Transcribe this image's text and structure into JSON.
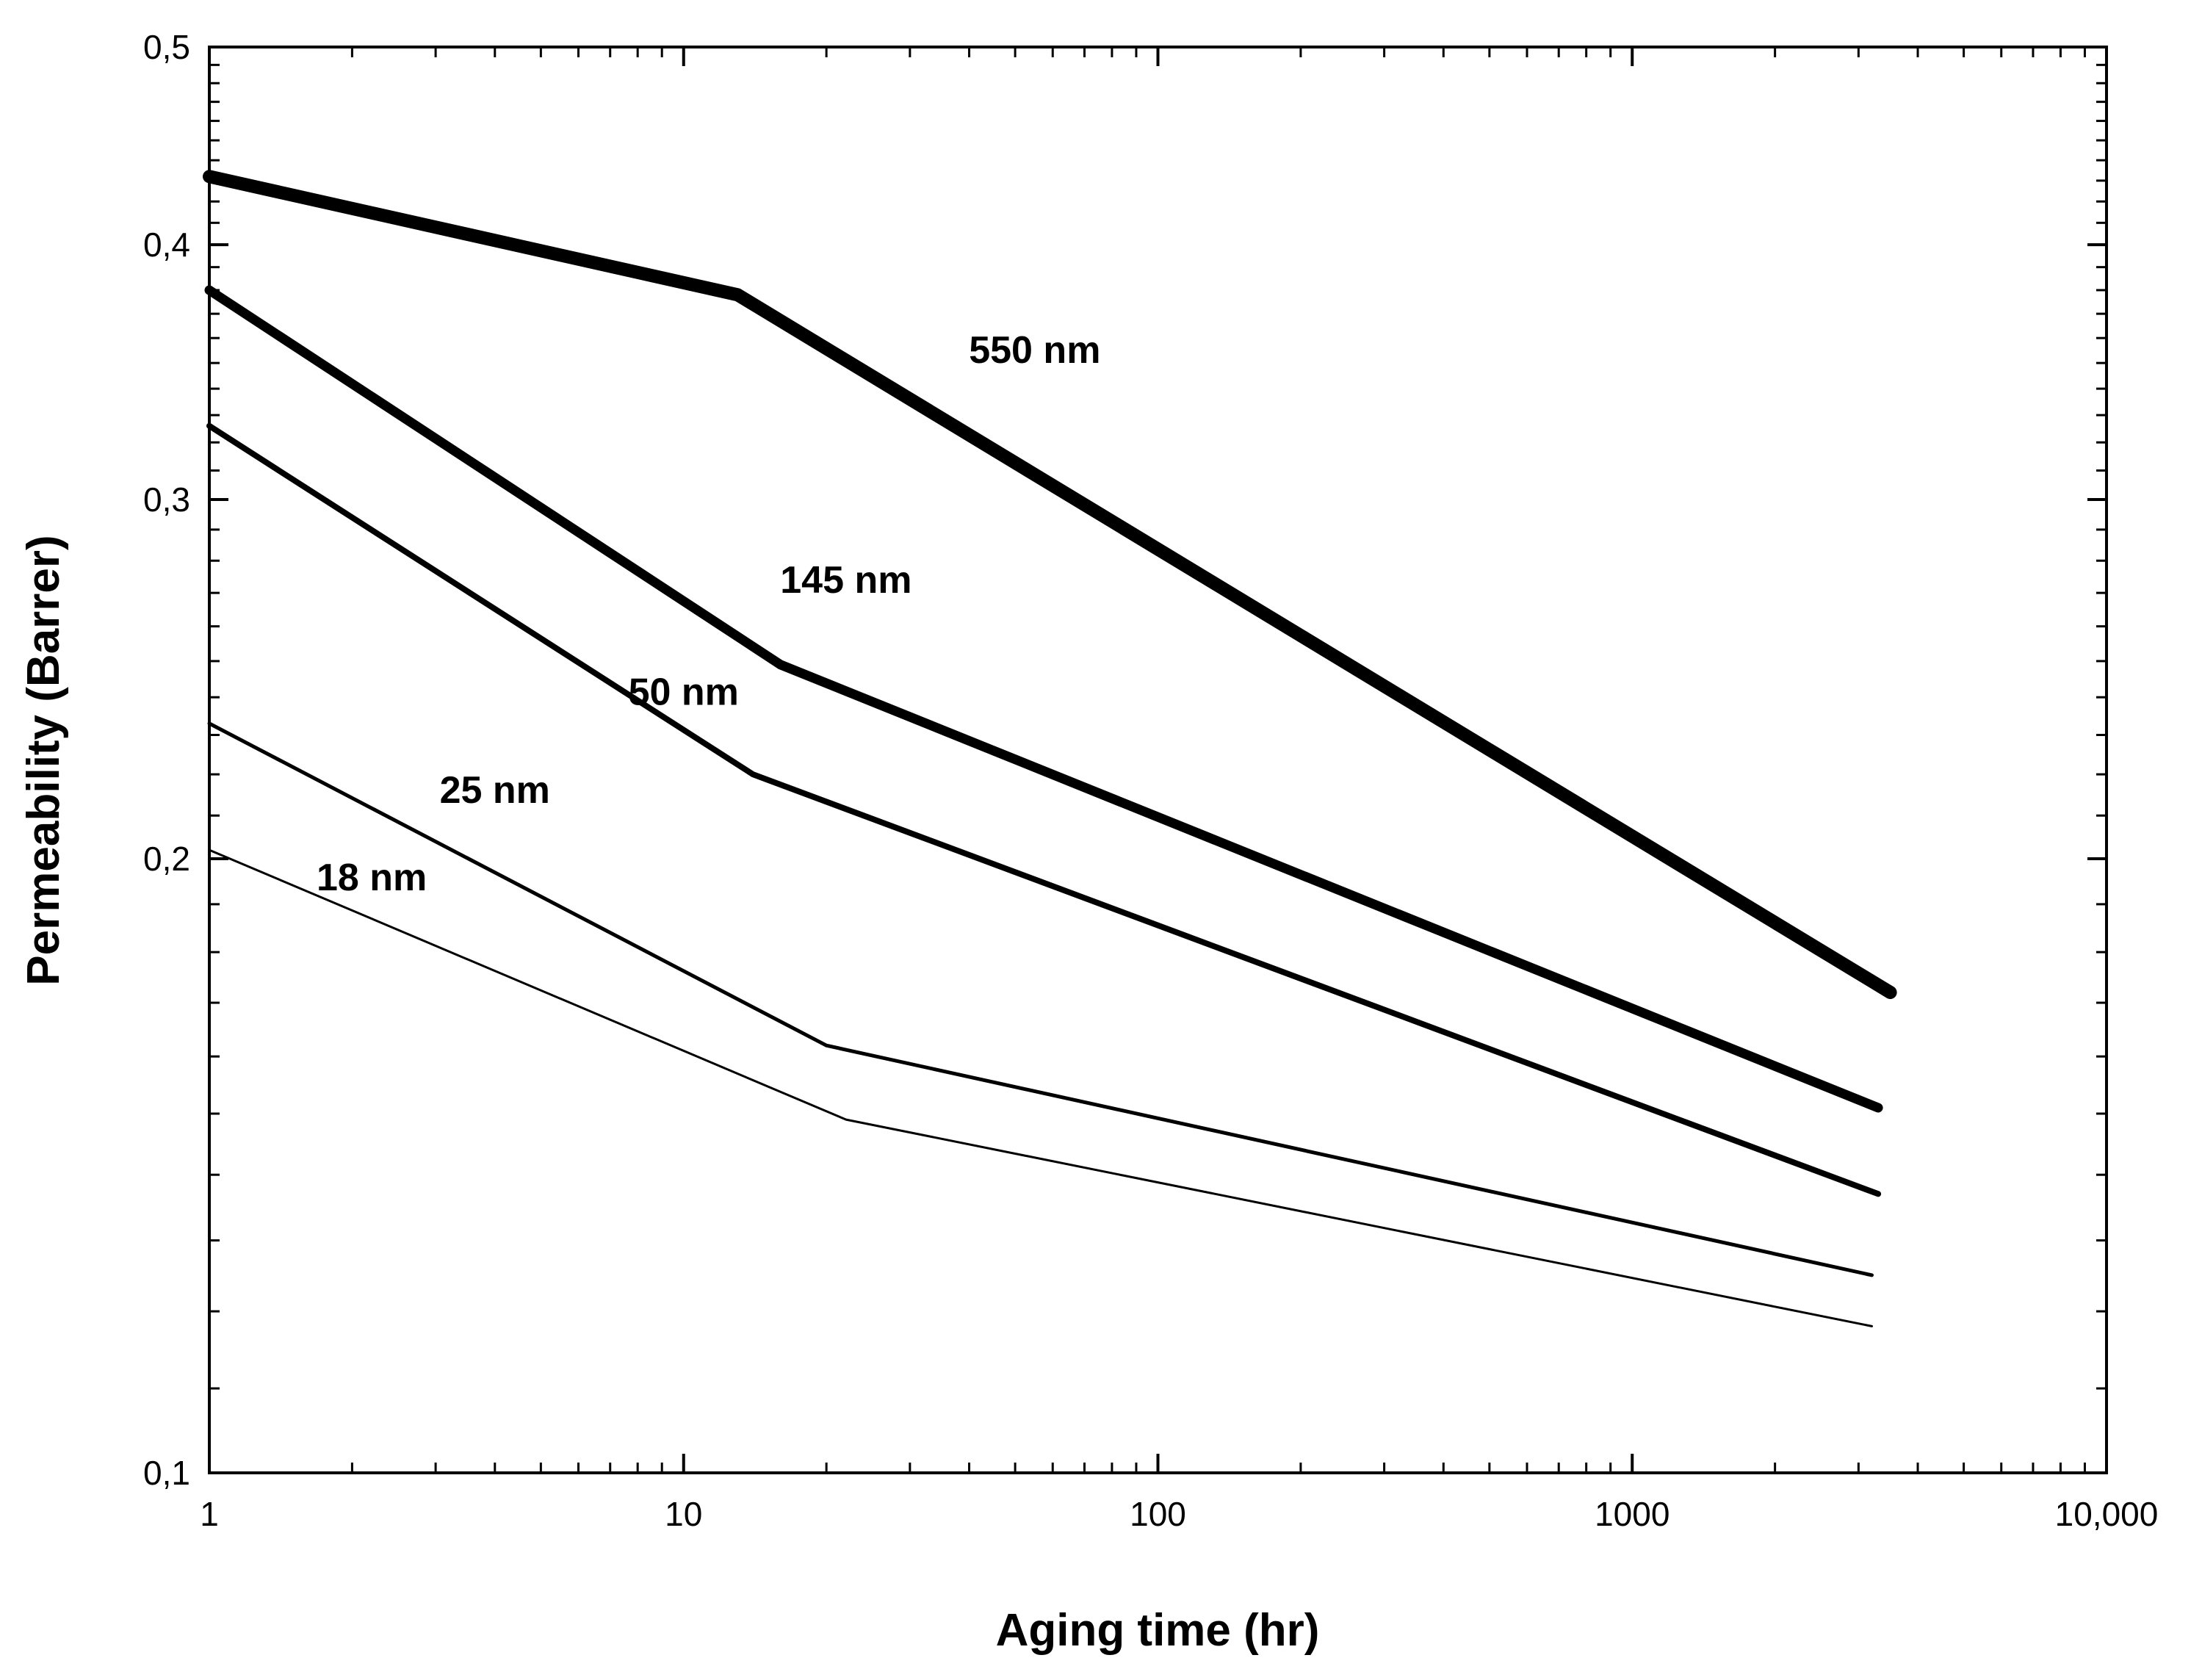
{
  "chart_data": {
    "type": "line",
    "title": "",
    "xlabel": "Aging time (hr)",
    "ylabel": "Permeability (Barrer)",
    "x_scale": "log",
    "y_scale": "log",
    "xlim": [
      1,
      10000
    ],
    "ylim": [
      0.1,
      0.5
    ],
    "x_ticks": [
      {
        "value": 1,
        "label": "1"
      },
      {
        "value": 10,
        "label": "10"
      },
      {
        "value": 100,
        "label": "100"
      },
      {
        "value": 1000,
        "label": "1000"
      },
      {
        "value": 10000,
        "label": "10,000"
      }
    ],
    "y_ticks": [
      {
        "value": 0.1,
        "label": "0,1"
      },
      {
        "value": 0.2,
        "label": "0,2"
      },
      {
        "value": 0.3,
        "label": "0,3"
      },
      {
        "value": 0.4,
        "label": "0,4"
      },
      {
        "value": 0.5,
        "label": "0,5"
      }
    ],
    "grid": false,
    "legend": "none",
    "series": [
      {
        "name": "550 nm",
        "x": [
          1,
          13,
          3500
        ],
        "y": [
          0.432,
          0.378,
          0.172
        ],
        "label_at": [
          55,
          0.35
        ]
      },
      {
        "name": "145 nm",
        "x": [
          1,
          16,
          3300
        ],
        "y": [
          0.38,
          0.249,
          0.151
        ],
        "label_at": [
          22,
          0.27
        ]
      },
      {
        "name": "50 nm",
        "x": [
          1,
          14,
          3300
        ],
        "y": [
          0.326,
          0.22,
          0.137
        ],
        "label_at": [
          10,
          0.238
        ]
      },
      {
        "name": "25 nm",
        "x": [
          1,
          20,
          3200
        ],
        "y": [
          0.233,
          0.162,
          0.125
        ],
        "label_at": [
          4,
          0.213
        ]
      },
      {
        "name": "18 nm",
        "x": [
          1,
          22,
          3200
        ],
        "y": [
          0.202,
          0.149,
          0.118
        ],
        "label_at": [
          2.2,
          0.193
        ]
      }
    ]
  }
}
